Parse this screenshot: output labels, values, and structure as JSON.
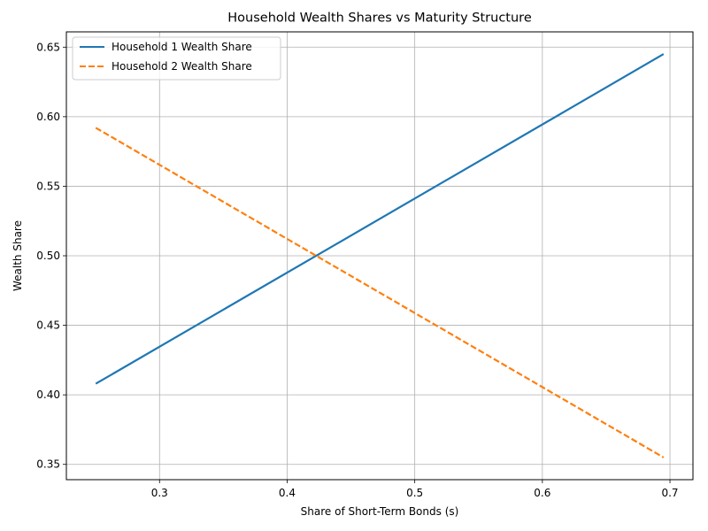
{
  "chart_data": {
    "type": "line",
    "title": "Household Wealth Shares vs Maturity Structure",
    "xlabel": "Share of Short-Term Bonds (s)",
    "ylabel": "Wealth Share",
    "xlim": [
      0.227,
      0.718
    ],
    "ylim": [
      0.339,
      0.661
    ],
    "xticks": [
      0.3,
      0.4,
      0.5,
      0.6,
      0.7
    ],
    "yticks": [
      0.35,
      0.4,
      0.45,
      0.5,
      0.55,
      0.6,
      0.65
    ],
    "xtick_labels": [
      "0.3",
      "0.4",
      "0.5",
      "0.6",
      "0.7"
    ],
    "ytick_labels": [
      "0.35",
      "0.40",
      "0.45",
      "0.50",
      "0.55",
      "0.60",
      "0.65"
    ],
    "grid": true,
    "legend_position": "top-left",
    "series": [
      {
        "name": "Household 1 Wealth Share",
        "color": "#1f77b4",
        "style": "solid",
        "x": [
          0.25,
          0.695
        ],
        "y": [
          0.408,
          0.645
        ]
      },
      {
        "name": "Household 2 Wealth Share",
        "color": "#ff7f0e",
        "style": "dashed",
        "x": [
          0.25,
          0.695
        ],
        "y": [
          0.592,
          0.355
        ]
      }
    ]
  }
}
